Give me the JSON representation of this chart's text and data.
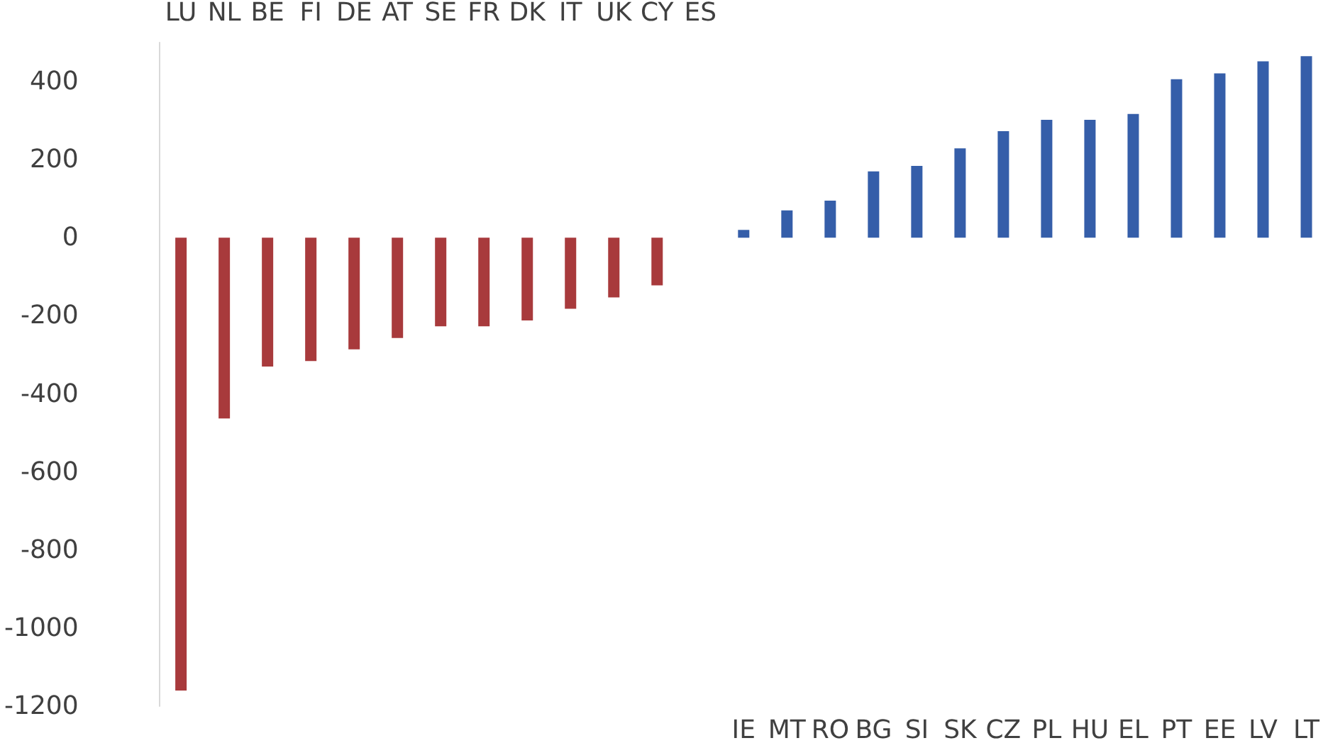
{
  "chart_data": {
    "type": "bar",
    "categories": [
      "LU",
      "NL",
      "BE",
      "FI",
      "DE",
      "AT",
      "SE",
      "FR",
      "DK",
      "IT",
      "UK",
      "CY",
      "ES",
      "IE",
      "MT",
      "RO",
      "BG",
      "SI",
      "SK",
      "CZ",
      "PL",
      "HU",
      "EL",
      "PT",
      "EE",
      "LV",
      "LT"
    ],
    "values": [
      -1160,
      -463,
      -330,
      -316,
      -286,
      -257,
      -227,
      -227,
      -212,
      -182,
      -153,
      -122,
      0,
      20,
      70,
      95,
      170,
      184,
      229,
      273,
      302,
      302,
      317,
      406,
      421,
      452,
      465
    ],
    "colors": [
      "#a83a3c",
      "#a83a3c",
      "#a83a3c",
      "#a83a3c",
      "#a83a3c",
      "#a83a3c",
      "#a83a3c",
      "#a83a3c",
      "#a83a3c",
      "#a83a3c",
      "#a83a3c",
      "#a83a3c",
      "#a83a3c",
      "#355ea9",
      "#355ea9",
      "#355ea9",
      "#355ea9",
      "#355ea9",
      "#355ea9",
      "#355ea9",
      "#355ea9",
      "#355ea9",
      "#355ea9",
      "#355ea9",
      "#355ea9",
      "#355ea9",
      "#355ea9"
    ],
    "ylim": [
      -1200,
      500
    ],
    "yticks": [
      -1200,
      -1000,
      -800,
      -600,
      -400,
      -200,
      0,
      200,
      400
    ],
    "grid": false
  }
}
